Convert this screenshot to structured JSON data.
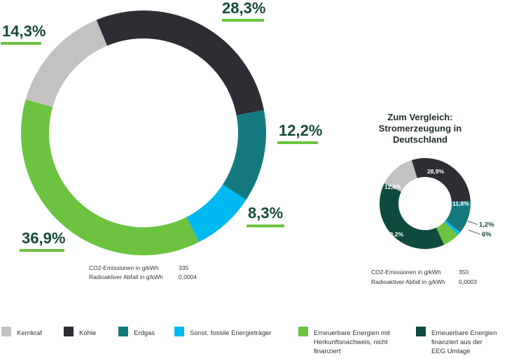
{
  "colors": {
    "kernkraft": "#c2c2c2",
    "kohle": "#2d2d33",
    "erdgas": "#157a80",
    "fossil": "#00b9f1",
    "ee_herkunft": "#6cc33f",
    "ee_eeg": "#0f4a3f",
    "underline": "#6cc33f",
    "label": "#144a3c"
  },
  "chart_data": [
    {
      "type": "pie",
      "variant": "donut",
      "title": "",
      "slices": [
        {
          "key": "kohle",
          "label": "28,3%",
          "value": 28.3
        },
        {
          "key": "erdgas",
          "label": "12,2%",
          "value": 12.2
        },
        {
          "key": "fossil",
          "label": "8,3%",
          "value": 8.3
        },
        {
          "key": "ee_herkunft",
          "label": "36,9%",
          "value": 36.9
        },
        {
          "key": "kernkraft",
          "label": "14,3%",
          "value": 14.3
        }
      ],
      "stats": [
        {
          "label": "CO2-Emissionen in g/kWh",
          "value": "335"
        },
        {
          "label": "Radioaktiver Abfall in g/kWh",
          "value": "0,0004"
        }
      ]
    },
    {
      "type": "pie",
      "variant": "donut",
      "title": [
        "Zum Vergleich:",
        "Stromerzeugung in",
        "Deutschland"
      ],
      "slices": [
        {
          "key": "kohle",
          "label": "28,9%",
          "value": 28.9
        },
        {
          "key": "erdgas",
          "label": "11,8%",
          "value": 11.8
        },
        {
          "key": "fossil",
          "label": "1,2%",
          "value": 1.2
        },
        {
          "key": "ee_herkunft",
          "label": "6%",
          "value": 6.0
        },
        {
          "key": "ee_eeg",
          "label": "39,2%",
          "value": 39.2
        },
        {
          "key": "kernkraft",
          "label": "12,9%",
          "value": 12.9
        }
      ],
      "stats": [
        {
          "label": "CO2-Emissionen in g/kWh",
          "value": "350"
        },
        {
          "label": "Radioaktiver Abfall in g/kWh",
          "value": "0,0003"
        }
      ]
    }
  ],
  "legend": [
    {
      "key": "kernkraft",
      "lines": [
        "Kernkraf"
      ]
    },
    {
      "key": "kohle",
      "lines": [
        "Kohle"
      ]
    },
    {
      "key": "erdgas",
      "lines": [
        "Erdgas"
      ]
    },
    {
      "key": "fossil",
      "lines": [
        "Sonst. fossile Energieträger"
      ]
    },
    {
      "key": "ee_herkunft",
      "lines": [
        "Erneuerbare Energien mit",
        "Herkunftsnachweis, nicht",
        "finanziert"
      ]
    },
    {
      "key": "ee_eeg",
      "lines": [
        "Erneuerbare Energien",
        "finanziert aus der",
        "EEG Umlage"
      ]
    }
  ]
}
